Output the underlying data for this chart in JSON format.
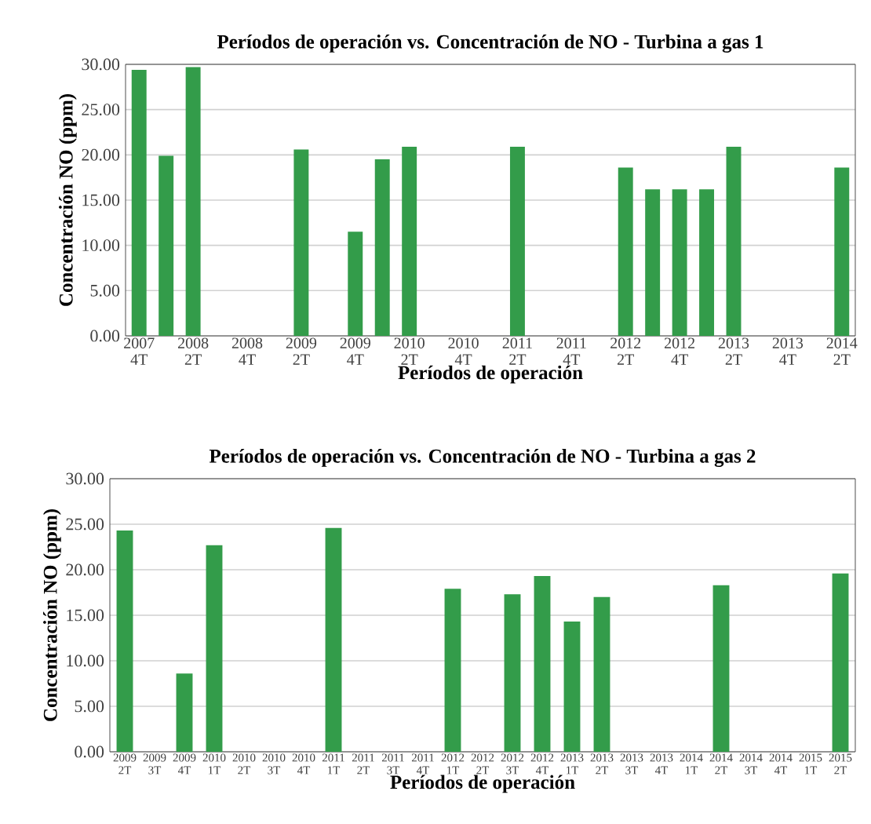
{
  "chart_data": [
    {
      "type": "bar",
      "title": "Períodos de operación vs. Concentración de NO - Turbina a gas 1",
      "xlabel": "Períodos de operación",
      "ylabel": "Concentración NO (ppm)",
      "categories": [
        "2007 4T",
        null,
        "2008 2T",
        null,
        "2008 4T",
        null,
        "2009 2T",
        null,
        "2009 4T",
        null,
        "2010 2T",
        null,
        "2010 4T",
        null,
        "2011 2T",
        null,
        "2011 4T",
        null,
        "2012 2T",
        null,
        "2012 4T",
        null,
        "2013 2T",
        null,
        "2013 4T",
        null,
        "2014 2T"
      ],
      "values": [
        29.4,
        19.9,
        29.7,
        null,
        null,
        null,
        20.6,
        null,
        11.5,
        19.5,
        20.9,
        null,
        null,
        null,
        20.9,
        null,
        null,
        null,
        18.6,
        16.2,
        16.2,
        16.2,
        20.9,
        null,
        null,
        null,
        18.6
      ],
      "color": "#339c4a",
      "ylim": [
        0,
        30
      ],
      "yticks": [
        {
          "value": 0,
          "label": "0.00"
        },
        {
          "value": 5,
          "label": "5.00"
        },
        {
          "value": 10,
          "label": "10.00"
        },
        {
          "value": 15,
          "label": "15.00"
        },
        {
          "value": 20,
          "label": "20.00"
        },
        {
          "value": 25,
          "label": "25.00"
        },
        {
          "value": 30,
          "label": "30.00"
        }
      ],
      "grid": "y"
    },
    {
      "type": "bar",
      "title": "Períodos de operación vs. Concentración de NO - Turbina a gas 2",
      "xlabel": "Períodos de operación",
      "ylabel": "Concentración NO (ppm)",
      "categories": [
        "2009 2T",
        "2009 3T",
        "2009 4T",
        "2010 1T",
        "2010 2T",
        "2010 3T",
        "2010 4T",
        "2011 1T",
        "2011 2T",
        "2011 3T",
        "2011 4T",
        "2012 1T",
        "2012 2T",
        "2012 3T",
        "2012 4T",
        "2013 1T",
        "2013 2T",
        "2013 3T",
        "2013 4T",
        "2014 1T",
        "2014 2T",
        "2014 3T",
        "2014 4T",
        "2015 1T",
        "2015 2T"
      ],
      "values": [
        24.3,
        null,
        8.6,
        22.7,
        null,
        null,
        null,
        24.6,
        null,
        null,
        null,
        17.9,
        null,
        17.3,
        19.3,
        14.3,
        17.0,
        null,
        null,
        null,
        18.3,
        null,
        null,
        null,
        19.6
      ],
      "color": "#339c4a",
      "ylim": [
        0,
        30
      ],
      "yticks": [
        {
          "value": 0,
          "label": "0.00"
        },
        {
          "value": 5,
          "label": "5.00"
        },
        {
          "value": 10,
          "label": "10.00"
        },
        {
          "value": 15,
          "label": "15.00"
        },
        {
          "value": 20,
          "label": "20.00"
        },
        {
          "value": 25,
          "label": "25.00"
        },
        {
          "value": 30,
          "label": "30.00"
        }
      ],
      "grid": "y"
    }
  ]
}
